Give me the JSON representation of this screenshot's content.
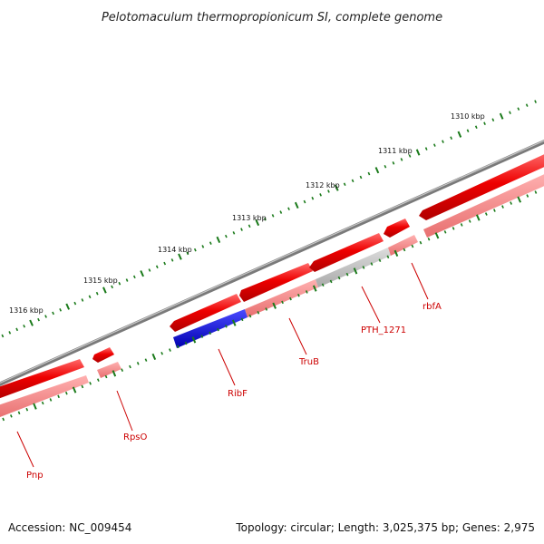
{
  "title": "Pelotomaculum thermopropionicum SI, complete genome",
  "footer": {
    "accession": "Accession: NC_009454",
    "topology": "Topology: circular; Length: 3,025,375 bp; Genes: 2,975"
  },
  "scale_labels": [
    "1310 kbp",
    "1311 kbp",
    "1312 kbp",
    "1313 kbp",
    "1314 kbp",
    "1315 kbp",
    "1316 kbp"
  ],
  "gene_labels": [
    "rbfA",
    "PTH_1271",
    "TruB",
    "RibF",
    "RpsO",
    "Pnp"
  ],
  "colors": {
    "backbone": "#808080",
    "forward_gene": "#ee0000",
    "forward_gene_light": "#f08080",
    "highlight_gene": "#0000dd",
    "pseudo_gene": "#c4c4c4",
    "tick": "#1a7a1a",
    "label": "#cc0000"
  }
}
